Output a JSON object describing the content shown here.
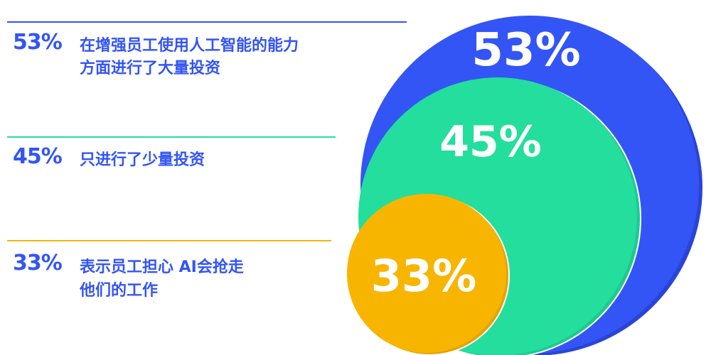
{
  "chart_data": {
    "type": "bubble",
    "series": [
      {
        "value": 53,
        "label": "53%",
        "description_lines": [
          "在增强员工使用人工智能的能力",
          "方面进行了大量投资"
        ],
        "color": "#3455F5"
      },
      {
        "value": 45,
        "label": "45%",
        "description_lines": [
          "只进行了少量投资"
        ],
        "color": "#23DE9C"
      },
      {
        "value": 33,
        "label": "33%",
        "description_lines": [
          "表示员工担心 AI会抢走",
          "他们的工作"
        ],
        "color": "#F7B500"
      }
    ]
  },
  "colors": {
    "text_blue": "#3455F5",
    "rule_blue": "#3455F5",
    "rule_green": "#23DE9C",
    "rule_yellow": "#F7B500"
  }
}
